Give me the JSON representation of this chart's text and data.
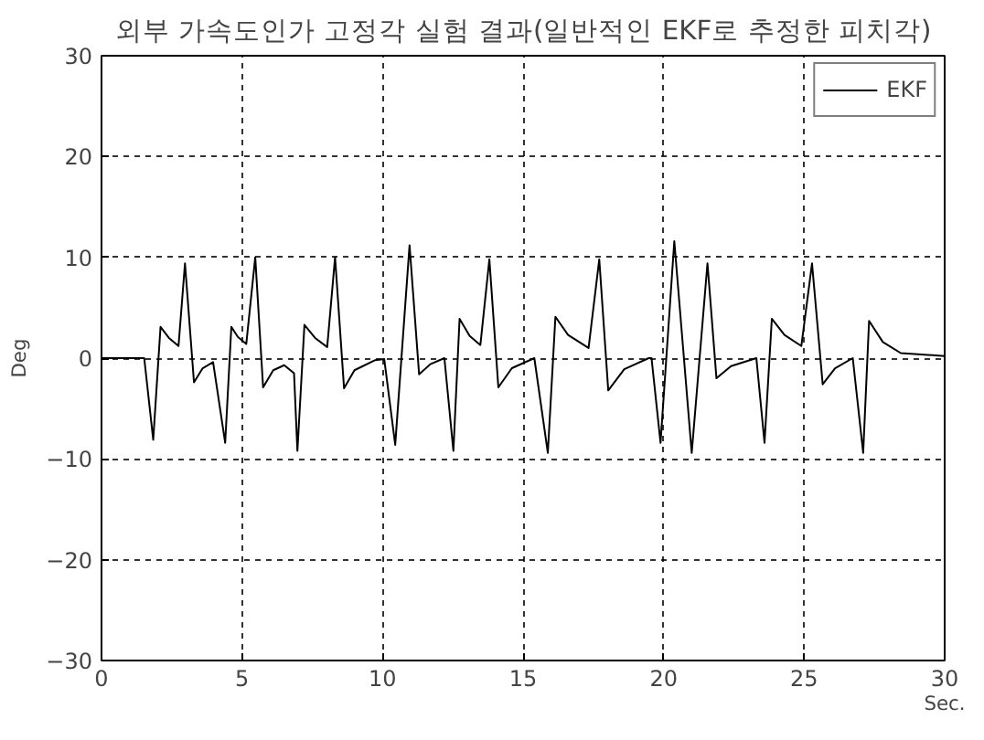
{
  "chart_data": {
    "type": "line",
    "title": "외부 가속도인가 고정각 실험 결과(일반적인 EKF로 추정한 피치각)",
    "xlabel": "Sec.",
    "ylabel": "Deg",
    "xlim": [
      0,
      30
    ],
    "ylim": [
      -30,
      30
    ],
    "xticks": [
      0,
      5,
      10,
      15,
      20,
      25,
      30
    ],
    "yticks": [
      -30,
      -20,
      -10,
      0,
      10,
      20,
      30
    ],
    "grid": true,
    "legend": "top right",
    "line_style": "solid",
    "marker": "none",
    "series": [
      {
        "name": "EKF",
        "color": "#000000",
        "x": [
          0,
          1.52,
          1.84,
          2.1,
          2.4,
          2.74,
          2.97,
          3.29,
          3.6,
          3.97,
          4.4,
          4.62,
          4.85,
          5.15,
          5.47,
          5.75,
          6.11,
          6.5,
          6.85,
          6.97,
          7.22,
          7.6,
          8.03,
          8.31,
          8.63,
          9.0,
          9.74,
          10.06,
          10.45,
          10.96,
          11.3,
          11.7,
          12.2,
          12.52,
          12.74,
          13.1,
          13.48,
          13.8,
          14.12,
          14.6,
          15.4,
          15.88,
          16.15,
          16.6,
          17.33,
          17.71,
          18.03,
          18.6,
          19.47,
          19.57,
          19.89,
          20.38,
          21.0,
          21.56,
          21.88,
          22.4,
          23.3,
          23.59,
          23.85,
          24.3,
          24.9,
          25.28,
          25.66,
          26.1,
          26.73,
          27.1,
          27.31,
          27.8,
          28.44,
          30
        ],
        "values": [
          0,
          0,
          -8.1,
          3.1,
          2.0,
          1.2,
          9.4,
          -2.4,
          -1.0,
          -0.4,
          -8.4,
          3.1,
          2.1,
          1.4,
          10,
          -2.9,
          -1.2,
          -0.7,
          -1.5,
          -9.2,
          3.3,
          2.0,
          1.1,
          10,
          -3,
          -1.2,
          -0.2,
          -0.1,
          -8.6,
          11.2,
          -1.6,
          -0.6,
          0,
          -9.2,
          3.9,
          2.2,
          1.3,
          9.8,
          -2.9,
          -1.0,
          0,
          -9.4,
          4.1,
          2.3,
          1,
          9.8,
          -3.2,
          -1.1,
          0,
          0,
          -8.4,
          11.6,
          -9.4,
          9.4,
          -2,
          -0.8,
          0,
          -8.4,
          3.9,
          2.3,
          1.2,
          9.4,
          -2.6,
          -1.0,
          0,
          -9.4,
          3.7,
          1.6,
          0.5,
          0.2
        ]
      }
    ]
  }
}
